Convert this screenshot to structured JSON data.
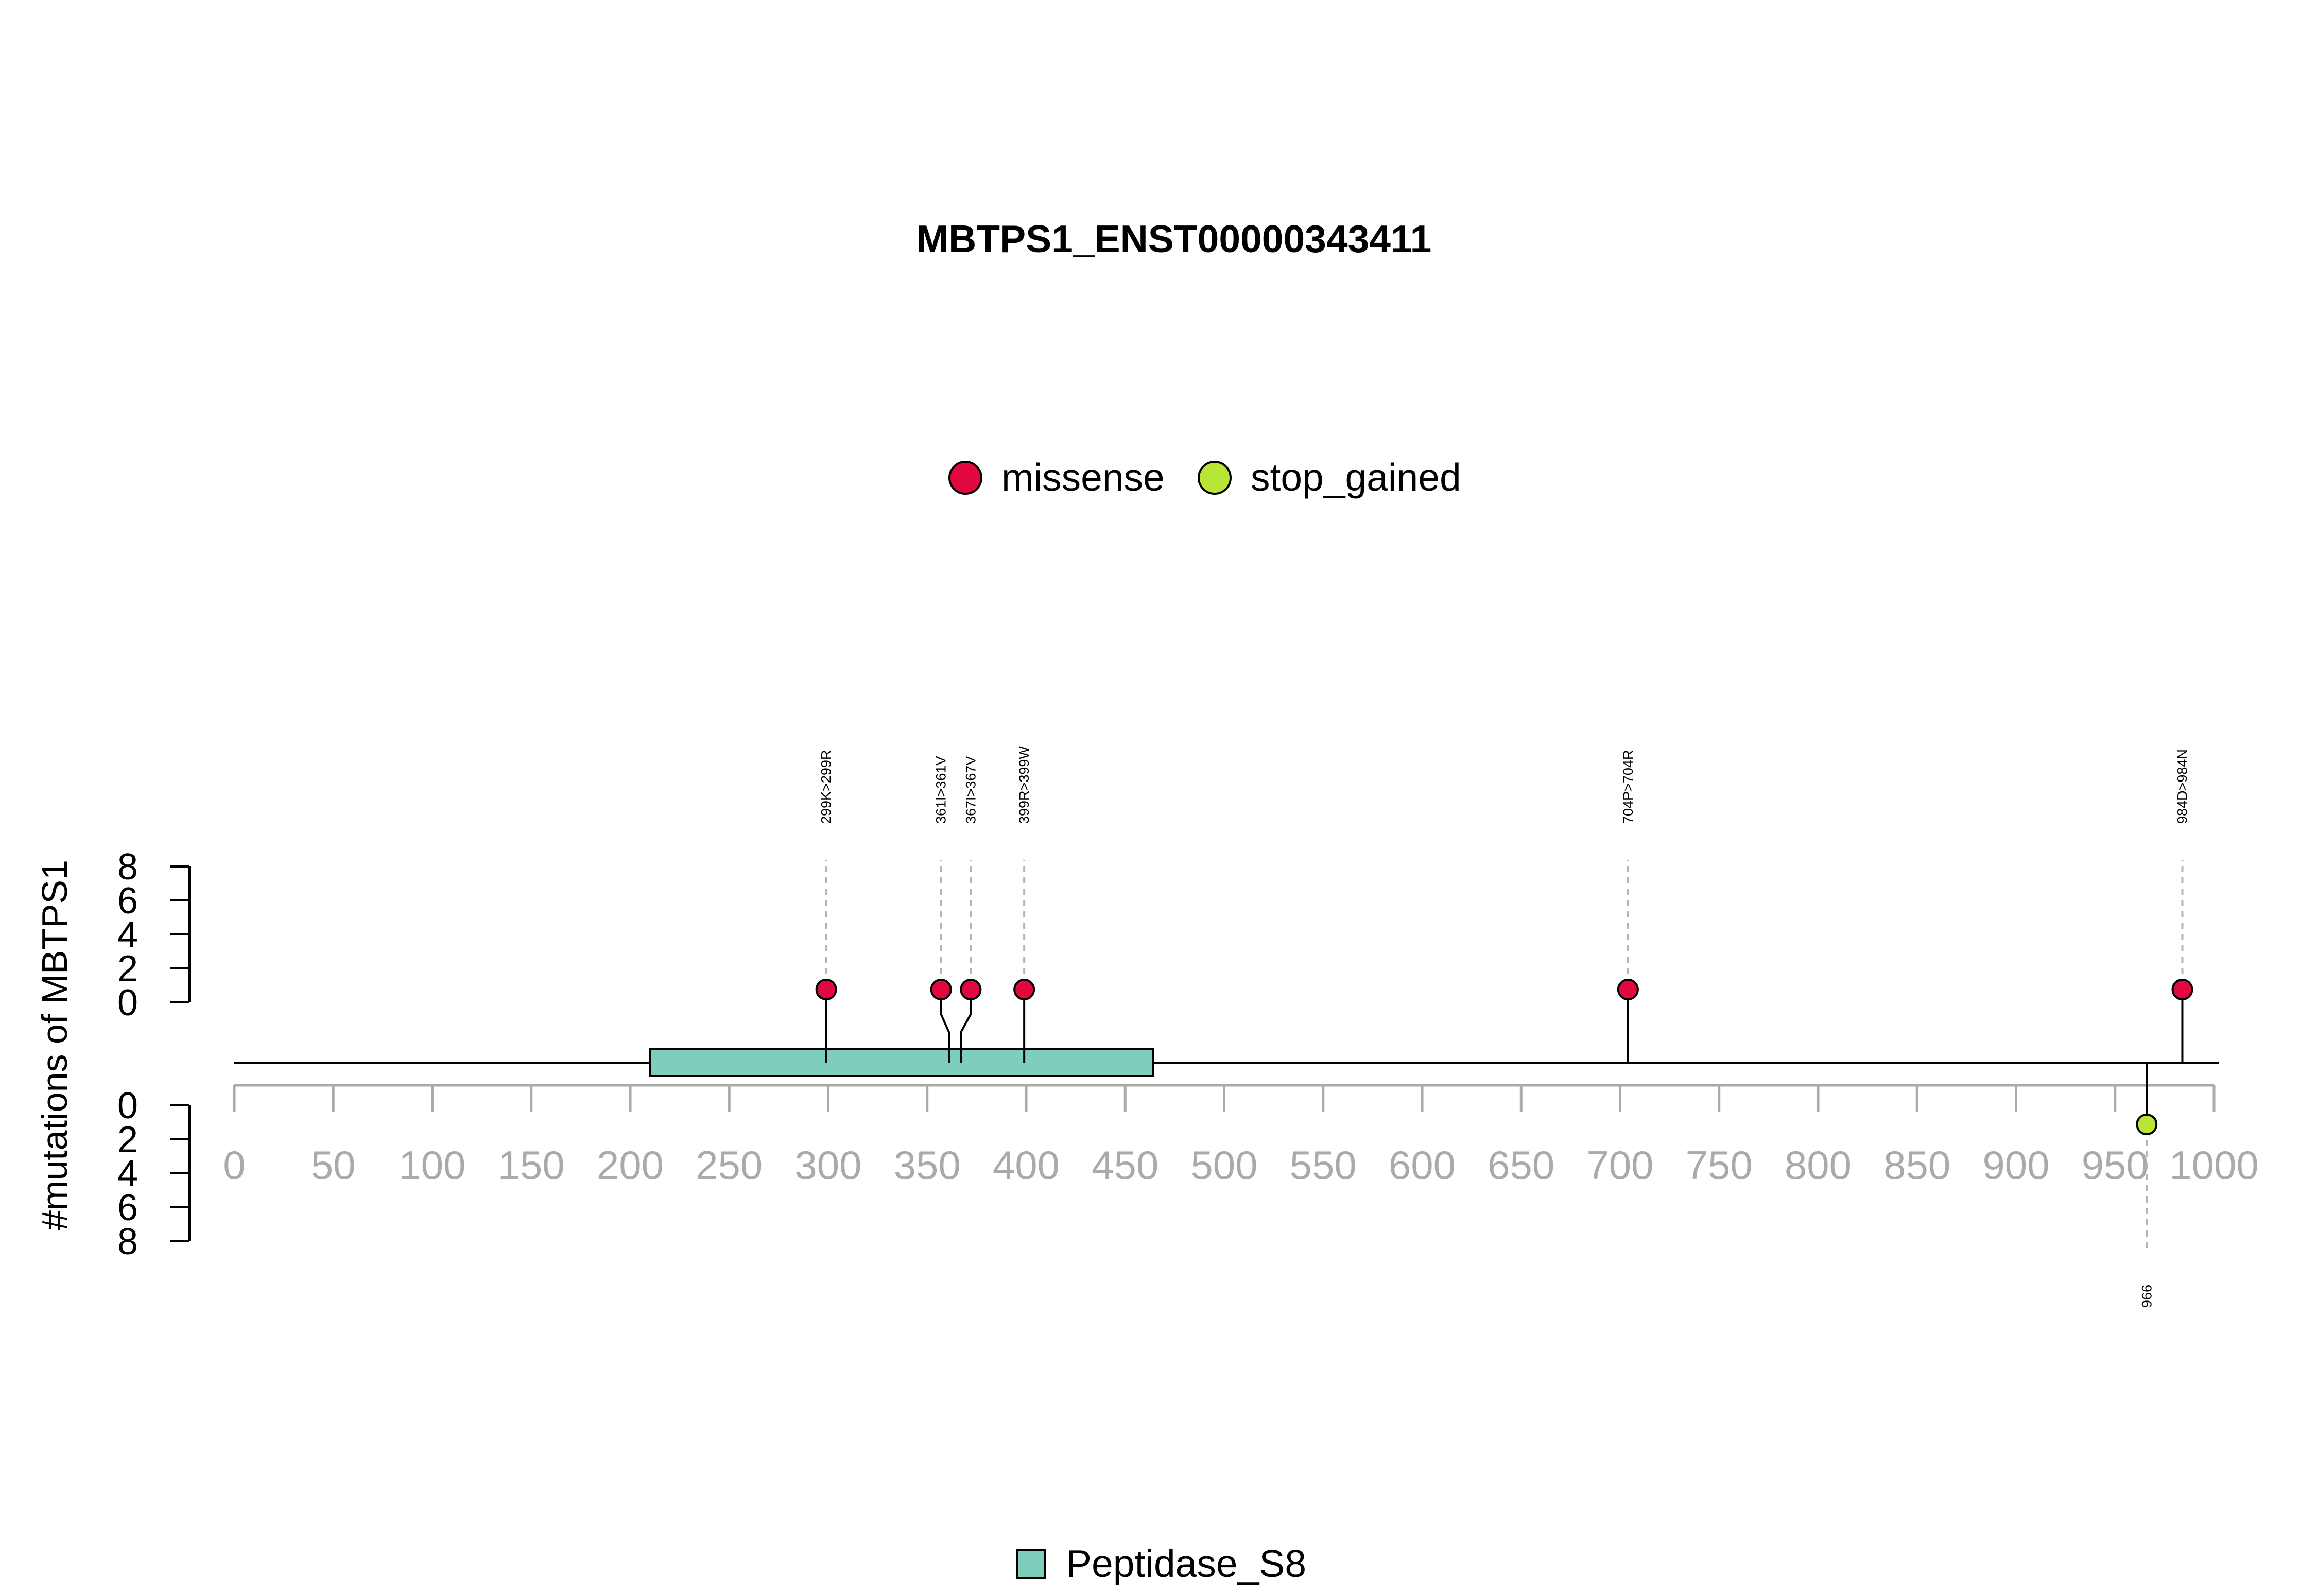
{
  "chart_data": {
    "type": "lollipop",
    "title": "MBTPS1_ENST00000343411",
    "ylabel": "#mutations of MBTPS1",
    "xlim": [
      0,
      1000
    ],
    "x_ticks": [
      0,
      50,
      100,
      150,
      200,
      250,
      300,
      350,
      400,
      450,
      500,
      550,
      600,
      650,
      700,
      750,
      800,
      850,
      900,
      950,
      1000
    ],
    "y_ticks_upper": [
      0,
      2,
      4,
      6,
      8
    ],
    "y_ticks_lower": [
      0,
      2,
      4,
      6,
      8
    ],
    "legend": [
      {
        "name": "missense",
        "color": "#E3073F"
      },
      {
        "name": "stop_gained",
        "color": "#B9E636"
      }
    ],
    "domains": [
      {
        "name": "Peptidase_S8",
        "start": 210,
        "end": 464,
        "color": "#7FCDBB"
      }
    ],
    "mutations": [
      {
        "position": 299,
        "label": "299K>299R",
        "type": "missense",
        "count": 1,
        "side": "top",
        "draw_position": 299
      },
      {
        "position": 361,
        "label": "361I>361V",
        "type": "missense",
        "count": 1,
        "side": "top",
        "draw_position": 357
      },
      {
        "position": 367,
        "label": "367I>367V",
        "type": "missense",
        "count": 1,
        "side": "top",
        "draw_position": 372
      },
      {
        "position": 399,
        "label": "399R>399W",
        "type": "missense",
        "count": 1,
        "side": "top",
        "draw_position": 399
      },
      {
        "position": 704,
        "label": "704P>704R",
        "type": "missense",
        "count": 1,
        "side": "top",
        "draw_position": 704
      },
      {
        "position": 984,
        "label": "984D>984N",
        "type": "missense",
        "count": 1,
        "side": "top",
        "draw_position": 984
      },
      {
        "position": 966,
        "label": "966",
        "type": "stop_gained",
        "count": 1,
        "side": "bottom",
        "draw_position": 966
      }
    ]
  }
}
